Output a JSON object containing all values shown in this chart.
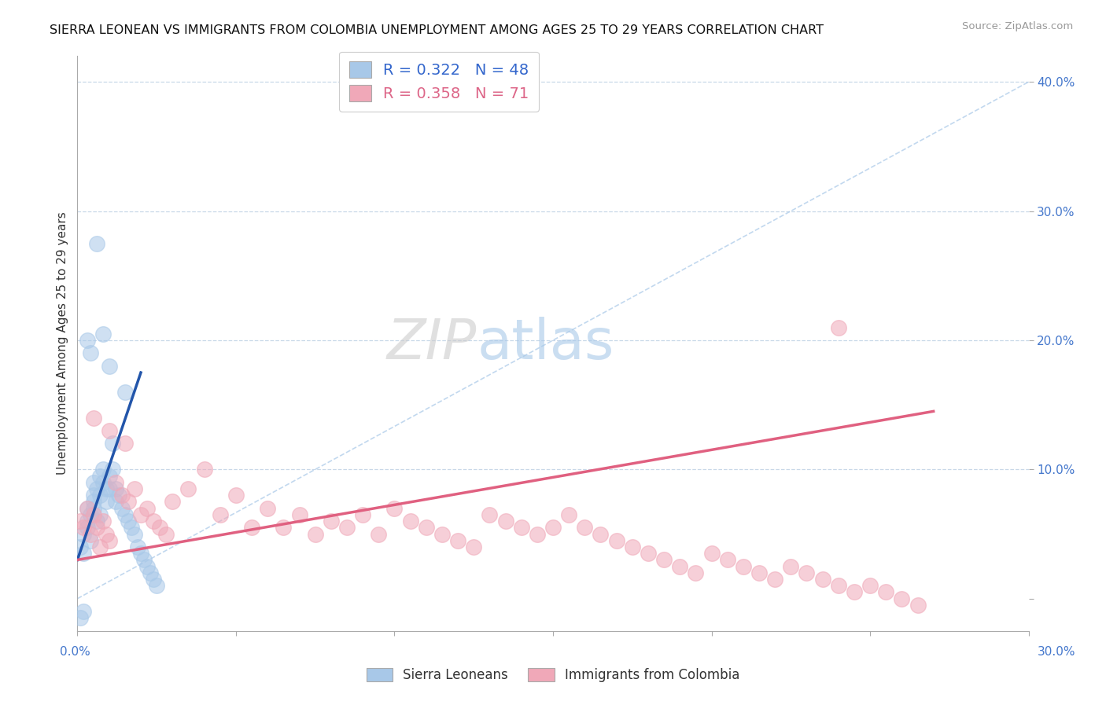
{
  "title": "SIERRA LEONEAN VS IMMIGRANTS FROM COLOMBIA UNEMPLOYMENT AMONG AGES 25 TO 29 YEARS CORRELATION CHART",
  "source": "Source: ZipAtlas.com",
  "ylabel": "Unemployment Among Ages 25 to 29 years",
  "blue_R": "0.322",
  "blue_N": "48",
  "pink_R": "0.358",
  "pink_N": "71",
  "blue_color": "#a8c8e8",
  "blue_line_color": "#2255aa",
  "pink_color": "#f0a8b8",
  "pink_line_color": "#e06080",
  "legend_label_blue": "Sierra Leoneans",
  "legend_label_pink": "Immigrants from Colombia",
  "watermark_zip": "ZIP",
  "watermark_atlas": "atlas",
  "background_color": "#ffffff",
  "x_lim": [
    0.0,
    0.3
  ],
  "y_lim": [
    -0.025,
    0.42
  ],
  "blue_x": [
    0.001,
    0.002,
    0.002,
    0.003,
    0.003,
    0.003,
    0.004,
    0.004,
    0.005,
    0.005,
    0.005,
    0.005,
    0.006,
    0.006,
    0.007,
    0.007,
    0.007,
    0.008,
    0.008,
    0.009,
    0.009,
    0.01,
    0.01,
    0.011,
    0.011,
    0.012,
    0.012,
    0.013,
    0.014,
    0.015,
    0.016,
    0.017,
    0.018,
    0.019,
    0.02,
    0.021,
    0.022,
    0.023,
    0.024,
    0.003,
    0.004,
    0.006,
    0.008,
    0.01,
    0.015,
    0.002,
    0.001,
    0.025
  ],
  "blue_y": [
    0.04,
    0.035,
    0.05,
    0.06,
    0.07,
    0.055,
    0.065,
    0.045,
    0.09,
    0.08,
    0.07,
    0.075,
    0.085,
    0.06,
    0.095,
    0.08,
    0.065,
    0.1,
    0.09,
    0.085,
    0.075,
    0.095,
    0.085,
    0.12,
    0.1,
    0.085,
    0.075,
    0.08,
    0.07,
    0.065,
    0.06,
    0.055,
    0.05,
    0.04,
    0.035,
    0.03,
    0.025,
    0.02,
    0.015,
    0.2,
    0.19,
    0.275,
    0.205,
    0.18,
    0.16,
    -0.01,
    -0.015,
    0.01
  ],
  "pink_x": [
    0.001,
    0.002,
    0.003,
    0.004,
    0.005,
    0.006,
    0.007,
    0.008,
    0.009,
    0.01,
    0.012,
    0.014,
    0.016,
    0.018,
    0.02,
    0.022,
    0.024,
    0.026,
    0.028,
    0.03,
    0.035,
    0.04,
    0.045,
    0.05,
    0.055,
    0.06,
    0.065,
    0.07,
    0.075,
    0.08,
    0.085,
    0.09,
    0.095,
    0.1,
    0.105,
    0.11,
    0.115,
    0.12,
    0.125,
    0.13,
    0.135,
    0.14,
    0.145,
    0.15,
    0.155,
    0.16,
    0.165,
    0.17,
    0.175,
    0.18,
    0.185,
    0.19,
    0.195,
    0.2,
    0.205,
    0.21,
    0.215,
    0.22,
    0.225,
    0.23,
    0.235,
    0.24,
    0.245,
    0.25,
    0.255,
    0.26,
    0.265,
    0.005,
    0.01,
    0.015,
    0.24
  ],
  "pink_y": [
    0.06,
    0.055,
    0.07,
    0.05,
    0.065,
    0.055,
    0.04,
    0.06,
    0.05,
    0.045,
    0.09,
    0.08,
    0.075,
    0.085,
    0.065,
    0.07,
    0.06,
    0.055,
    0.05,
    0.075,
    0.085,
    0.1,
    0.065,
    0.08,
    0.055,
    0.07,
    0.055,
    0.065,
    0.05,
    0.06,
    0.055,
    0.065,
    0.05,
    0.07,
    0.06,
    0.055,
    0.05,
    0.045,
    0.04,
    0.065,
    0.06,
    0.055,
    0.05,
    0.055,
    0.065,
    0.055,
    0.05,
    0.045,
    0.04,
    0.035,
    0.03,
    0.025,
    0.02,
    0.035,
    0.03,
    0.025,
    0.02,
    0.015,
    0.025,
    0.02,
    0.015,
    0.01,
    0.005,
    0.01,
    0.005,
    0.0,
    -0.005,
    0.14,
    0.13,
    0.12,
    0.21
  ],
  "blue_line_x": [
    0.0,
    0.02
  ],
  "blue_line_y": [
    0.03,
    0.175
  ],
  "pink_line_x": [
    0.0,
    0.27
  ],
  "pink_line_y": [
    0.03,
    0.145
  ],
  "diag_line_x": [
    0.0,
    0.3
  ],
  "diag_line_y": [
    0.0,
    0.4
  ]
}
